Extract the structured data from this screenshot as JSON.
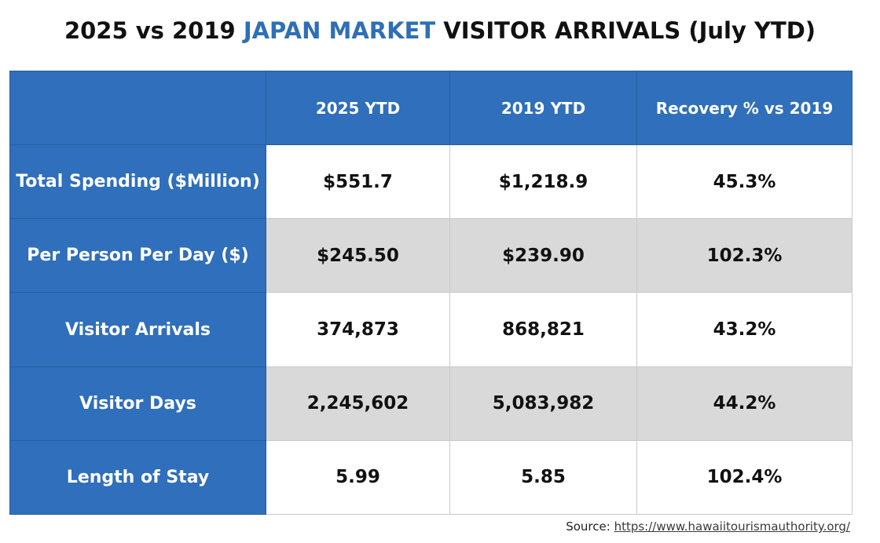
{
  "title": {
    "part1": "2025 vs 2019 ",
    "accent": "JAPAN MARKET",
    "part2": " VISITOR ARRIVALS (July YTD)",
    "accent_color": "#2e6fb7"
  },
  "table": {
    "columns": [
      "",
      "2025 YTD",
      "2019 YTD",
      "Recovery % vs 2019"
    ],
    "rows": [
      {
        "label": "Total Spending ($Million)",
        "values": [
          "$551.7",
          "$1,218.9",
          "45.3%"
        ]
      },
      {
        "label": "Per Person Per Day ($)",
        "values": [
          "$245.50",
          "$239.90",
          "102.3%"
        ]
      },
      {
        "label": "Visitor Arrivals",
        "values": [
          "374,873",
          "868,821",
          "43.2%"
        ]
      },
      {
        "label": "Visitor Days",
        "values": [
          "2,245,602",
          "5,083,982",
          "44.2%"
        ]
      },
      {
        "label": "Length of Stay",
        "values": [
          "5.99",
          "5.85",
          "102.4%"
        ]
      }
    ],
    "header_color": "#2f6fbb",
    "stripe_color": "#d9d9d9"
  },
  "source": {
    "prefix": "Source: ",
    "link_text": "https://www.hawaiitourismauthority.org/"
  }
}
